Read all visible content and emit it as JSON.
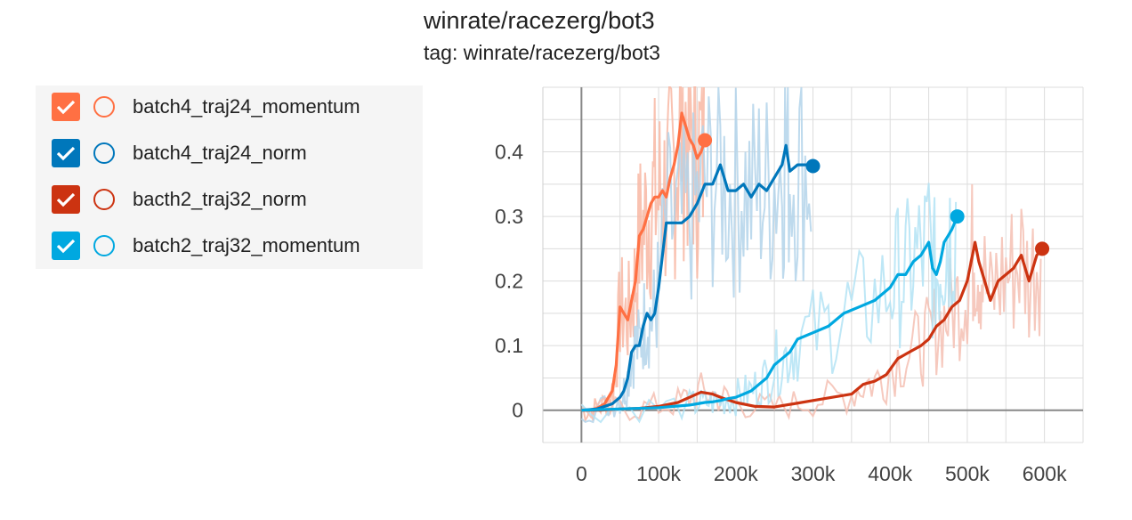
{
  "chart_data": {
    "type": "line",
    "title": "winrate/racezerg/bot3",
    "subtitle": "tag: winrate/racezerg/bot3",
    "xlim": [
      -50000,
      650000
    ],
    "ylim": [
      -0.05,
      0.5
    ],
    "x_ticks": [
      0,
      100000,
      200000,
      300000,
      400000,
      500000,
      600000
    ],
    "x_tick_labels": [
      "0",
      "100k",
      "200k",
      "300k",
      "400k",
      "500k",
      "600k"
    ],
    "y_ticks": [
      0,
      0.1,
      0.2,
      0.3,
      0.4
    ],
    "y_tick_labels": [
      "0",
      "0.1",
      "0.2",
      "0.3",
      "0.4"
    ],
    "grid": true,
    "legend_position": "left",
    "series": [
      {
        "name": "batch4_traj24_momentum",
        "color": "#ff7043",
        "raw_color": "#f8b7a3",
        "x": [
          0,
          10000,
          20000,
          30000,
          40000,
          45000,
          50000,
          55000,
          60000,
          65000,
          70000,
          75000,
          80000,
          85000,
          90000,
          95000,
          100000,
          105000,
          110000,
          115000,
          120000,
          125000,
          130000,
          135000,
          140000,
          145000,
          150000,
          155000,
          160000
        ],
        "values": [
          0,
          0,
          0.003,
          0.01,
          0.03,
          0.07,
          0.16,
          0.15,
          0.14,
          0.17,
          0.2,
          0.27,
          0.28,
          0.3,
          0.32,
          0.33,
          0.33,
          0.34,
          0.33,
          0.36,
          0.38,
          0.41,
          0.46,
          0.44,
          0.42,
          0.41,
          0.39,
          0.4,
          0.418
        ]
      },
      {
        "name": "batch4_traj24_norm",
        "color": "#0077bb",
        "raw_color": "#b3d4ea",
        "x": [
          0,
          20000,
          40000,
          50000,
          55000,
          60000,
          65000,
          70000,
          75000,
          80000,
          85000,
          90000,
          95000,
          100000,
          110000,
          120000,
          130000,
          140000,
          150000,
          160000,
          170000,
          180000,
          190000,
          200000,
          210000,
          220000,
          230000,
          240000,
          250000,
          260000,
          265000,
          270000,
          280000,
          290000,
          300000
        ],
        "values": [
          0,
          0.002,
          0.01,
          0.02,
          0.03,
          0.05,
          0.09,
          0.1,
          0.1,
          0.13,
          0.15,
          0.14,
          0.15,
          0.19,
          0.29,
          0.29,
          0.29,
          0.3,
          0.32,
          0.35,
          0.35,
          0.38,
          0.34,
          0.34,
          0.35,
          0.33,
          0.35,
          0.34,
          0.36,
          0.38,
          0.41,
          0.37,
          0.38,
          0.38,
          0.378
        ]
      },
      {
        "name": "bacth2_traj32_norm",
        "color": "#cc3311",
        "raw_color": "#f5c0b3",
        "x": [
          0,
          25000,
          50000,
          75000,
          100000,
          125000,
          140000,
          155000,
          170000,
          185000,
          200000,
          225000,
          250000,
          275000,
          300000,
          325000,
          350000,
          365000,
          380000,
          395000,
          410000,
          425000,
          440000,
          450000,
          460000,
          470000,
          480000,
          490000,
          500000,
          505000,
          510000,
          515000,
          520000,
          530000,
          540000,
          550000,
          560000,
          570000,
          580000,
          590000,
          597000
        ],
        "values": [
          0,
          0.0,
          0.002,
          0.003,
          0.006,
          0.012,
          0.02,
          0.028,
          0.025,
          0.018,
          0.012,
          0.006,
          0.005,
          0.01,
          0.015,
          0.02,
          0.025,
          0.04,
          0.045,
          0.055,
          0.08,
          0.09,
          0.1,
          0.11,
          0.13,
          0.14,
          0.16,
          0.17,
          0.2,
          0.23,
          0.26,
          0.23,
          0.21,
          0.17,
          0.2,
          0.21,
          0.22,
          0.24,
          0.2,
          0.24,
          0.25
        ]
      },
      {
        "name": "batch2_traj32_momentum",
        "color": "#00a8e0",
        "raw_color": "#b3e3f4",
        "x": [
          0,
          50000,
          100000,
          140000,
          150000,
          160000,
          170000,
          180000,
          190000,
          200000,
          210000,
          220000,
          230000,
          240000,
          250000,
          260000,
          270000,
          280000,
          300000,
          320000,
          340000,
          360000,
          380000,
          400000,
          410000,
          420000,
          430000,
          440000,
          450000,
          455000,
          460000,
          465000,
          470000,
          475000,
          480000,
          487000
        ],
        "values": [
          0,
          0.002,
          0.004,
          0.008,
          0.01,
          0.012,
          0.013,
          0.015,
          0.018,
          0.02,
          0.025,
          0.03,
          0.04,
          0.05,
          0.07,
          0.08,
          0.09,
          0.11,
          0.12,
          0.13,
          0.15,
          0.16,
          0.17,
          0.19,
          0.21,
          0.21,
          0.23,
          0.24,
          0.26,
          0.22,
          0.21,
          0.23,
          0.26,
          0.27,
          0.28,
          0.3
        ]
      }
    ]
  }
}
